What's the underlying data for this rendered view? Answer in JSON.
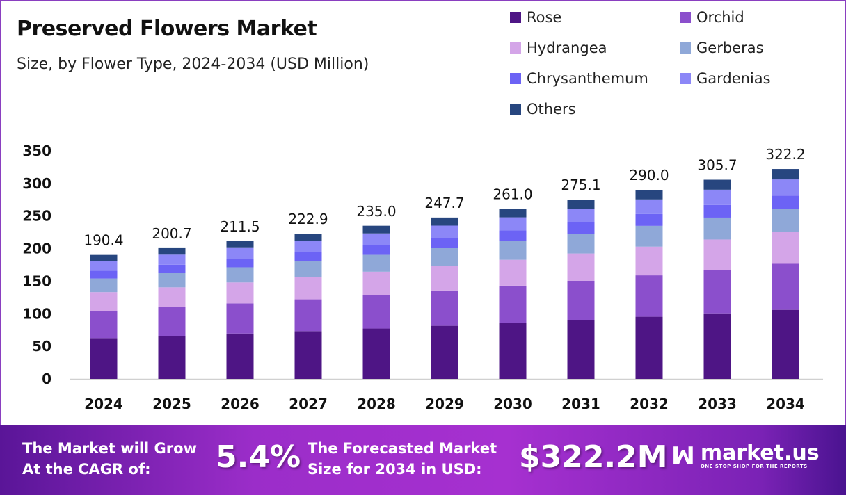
{
  "chart_data": {
    "type": "bar",
    "stacked": true,
    "title": "Preserved Flowers Market",
    "subtitle": "Size, by Flower Type, 2024-2034 (USD Million)",
    "xlabel": "",
    "ylabel": "",
    "ylim": [
      0,
      350
    ],
    "yticks": [
      0,
      50,
      100,
      150,
      200,
      250,
      300,
      350
    ],
    "grid": false,
    "legend_position": "top-right",
    "categories": [
      "2024",
      "2025",
      "2026",
      "2027",
      "2028",
      "2029",
      "2030",
      "2031",
      "2032",
      "2033",
      "2034"
    ],
    "totals": [
      "190.4",
      "200.7",
      "211.5",
      "222.9",
      "235.0",
      "247.7",
      "261.0",
      "275.1",
      "290.0",
      "305.7",
      "322.2"
    ],
    "series": [
      {
        "name": "Rose",
        "color": "#4e1585",
        "values": [
          62.6,
          66.0,
          69.6,
          73.3,
          77.3,
          81.5,
          85.9,
          90.5,
          95.4,
          100.6,
          106.0
        ]
      },
      {
        "name": "Orchid",
        "color": "#8b4fcc",
        "values": [
          41.7,
          44.0,
          46.3,
          48.8,
          51.5,
          54.2,
          57.2,
          60.2,
          63.5,
          66.9,
          70.6
        ]
      },
      {
        "name": "Hydrangea",
        "color": "#d4a5e8",
        "values": [
          28.9,
          30.5,
          32.1,
          33.9,
          35.7,
          37.7,
          39.7,
          41.8,
          44.1,
          46.5,
          49.0
        ]
      },
      {
        "name": "Gerberas",
        "color": "#8fa8d8",
        "values": [
          20.9,
          22.1,
          23.3,
          24.5,
          25.9,
          27.2,
          28.7,
          30.3,
          31.9,
          33.6,
          35.4
        ]
      },
      {
        "name": "Chrysanthemum",
        "color": "#6c63f5",
        "values": [
          12.0,
          12.6,
          13.3,
          14.0,
          14.8,
          15.6,
          16.4,
          17.3,
          18.3,
          19.3,
          20.3
        ]
      },
      {
        "name": "Gardenias",
        "color": "#8c87f7",
        "values": [
          14.7,
          15.5,
          16.3,
          17.2,
          18.1,
          19.1,
          20.1,
          21.2,
          22.3,
          23.5,
          24.8
        ]
      },
      {
        "name": "Others",
        "color": "#27467f",
        "values": [
          9.5,
          10.0,
          10.6,
          11.1,
          11.8,
          12.4,
          13.1,
          13.8,
          14.5,
          15.3,
          16.1
        ]
      }
    ]
  },
  "footer": {
    "cagr_label_1": "The Market will Grow",
    "cagr_label_2": "At the CAGR of:",
    "cagr_value": "5.4%",
    "forecast_label_1": "The Forecasted Market",
    "forecast_label_2": "Size for 2034 in USD:",
    "forecast_value": "$322.2M",
    "brand": "market.us",
    "brand_tagline": "ONE STOP SHOP FOR THE REPORTS",
    "logo_icon": "market-us-logo-icon"
  }
}
